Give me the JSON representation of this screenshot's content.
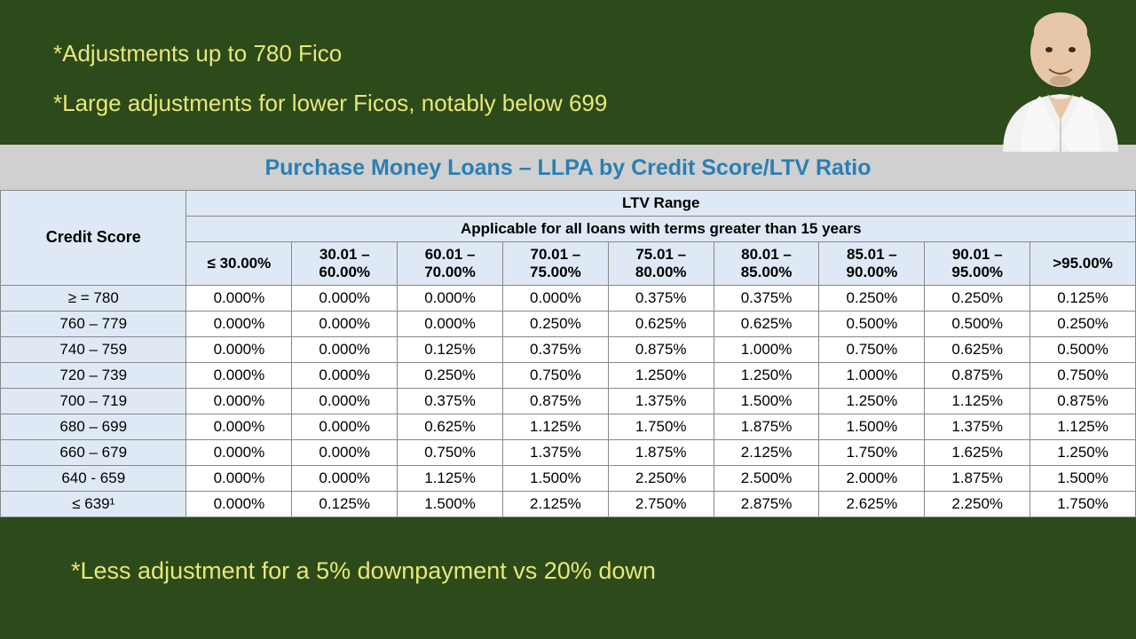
{
  "colors": {
    "background": "#2d4a1a",
    "bullet_text": "#e8e878",
    "table_title": "#2a7fb5",
    "header_bg": "#dfe9f5",
    "table_strip_bg": "#d0d0d0",
    "cell_text": "#000000",
    "border": "#888888"
  },
  "fonts": {
    "family": "Arial",
    "bullet_size": 26,
    "title_size": 25,
    "cell_size": 17
  },
  "bullets": {
    "b1": "*Adjustments up to 780 Fico",
    "b2": "*Large adjustments for lower Ficos, notably below 699",
    "b3": "*Less adjustment for a 5% downpayment vs  20% down"
  },
  "table": {
    "title": "Purchase Money Loans – LLPA by Credit Score/LTV Ratio",
    "credit_score_label": "Credit Score",
    "ltv_range_label": "LTV Range",
    "applicable_label": "Applicable for all loans with terms greater than 15 years",
    "ltv_columns": [
      "≤ 30.00%",
      "30.01 – 60.00%",
      "60.01 – 70.00%",
      "70.01 – 75.00%",
      "75.01 – 80.00%",
      "80.01 – 85.00%",
      "85.01 – 90.00%",
      "90.01 – 95.00%",
      ">95.00%"
    ],
    "rows": [
      {
        "label": "≥ = 780",
        "vals": [
          "0.000%",
          "0.000%",
          "0.000%",
          "0.000%",
          "0.375%",
          "0.375%",
          "0.250%",
          "0.250%",
          "0.125%"
        ]
      },
      {
        "label": "760 – 779",
        "vals": [
          "0.000%",
          "0.000%",
          "0.000%",
          "0.250%",
          "0.625%",
          "0.625%",
          "0.500%",
          "0.500%",
          "0.250%"
        ]
      },
      {
        "label": "740 – 759",
        "vals": [
          "0.000%",
          "0.000%",
          "0.125%",
          "0.375%",
          "0.875%",
          "1.000%",
          "0.750%",
          "0.625%",
          "0.500%"
        ]
      },
      {
        "label": "720 – 739",
        "vals": [
          "0.000%",
          "0.000%",
          "0.250%",
          "0.750%",
          "1.250%",
          "1.250%",
          "1.000%",
          "0.875%",
          "0.750%"
        ]
      },
      {
        "label": "700 – 719",
        "vals": [
          "0.000%",
          "0.000%",
          "0.375%",
          "0.875%",
          "1.375%",
          "1.500%",
          "1.250%",
          "1.125%",
          "0.875%"
        ]
      },
      {
        "label": "680 – 699",
        "vals": [
          "0.000%",
          "0.000%",
          "0.625%",
          "1.125%",
          "1.750%",
          "1.875%",
          "1.500%",
          "1.375%",
          "1.125%"
        ]
      },
      {
        "label": "660 – 679",
        "vals": [
          "0.000%",
          "0.000%",
          "0.750%",
          "1.375%",
          "1.875%",
          "2.125%",
          "1.750%",
          "1.625%",
          "1.250%"
        ]
      },
      {
        "label": "640 - 659",
        "vals": [
          "0.000%",
          "0.000%",
          "1.125%",
          "1.500%",
          "2.250%",
          "2.500%",
          "2.000%",
          "1.875%",
          "1.500%"
        ]
      },
      {
        "label": "≤ 639¹",
        "vals": [
          "0.000%",
          "0.125%",
          "1.500%",
          "2.125%",
          "2.750%",
          "2.875%",
          "2.625%",
          "2.250%",
          "1.750%"
        ]
      }
    ]
  }
}
